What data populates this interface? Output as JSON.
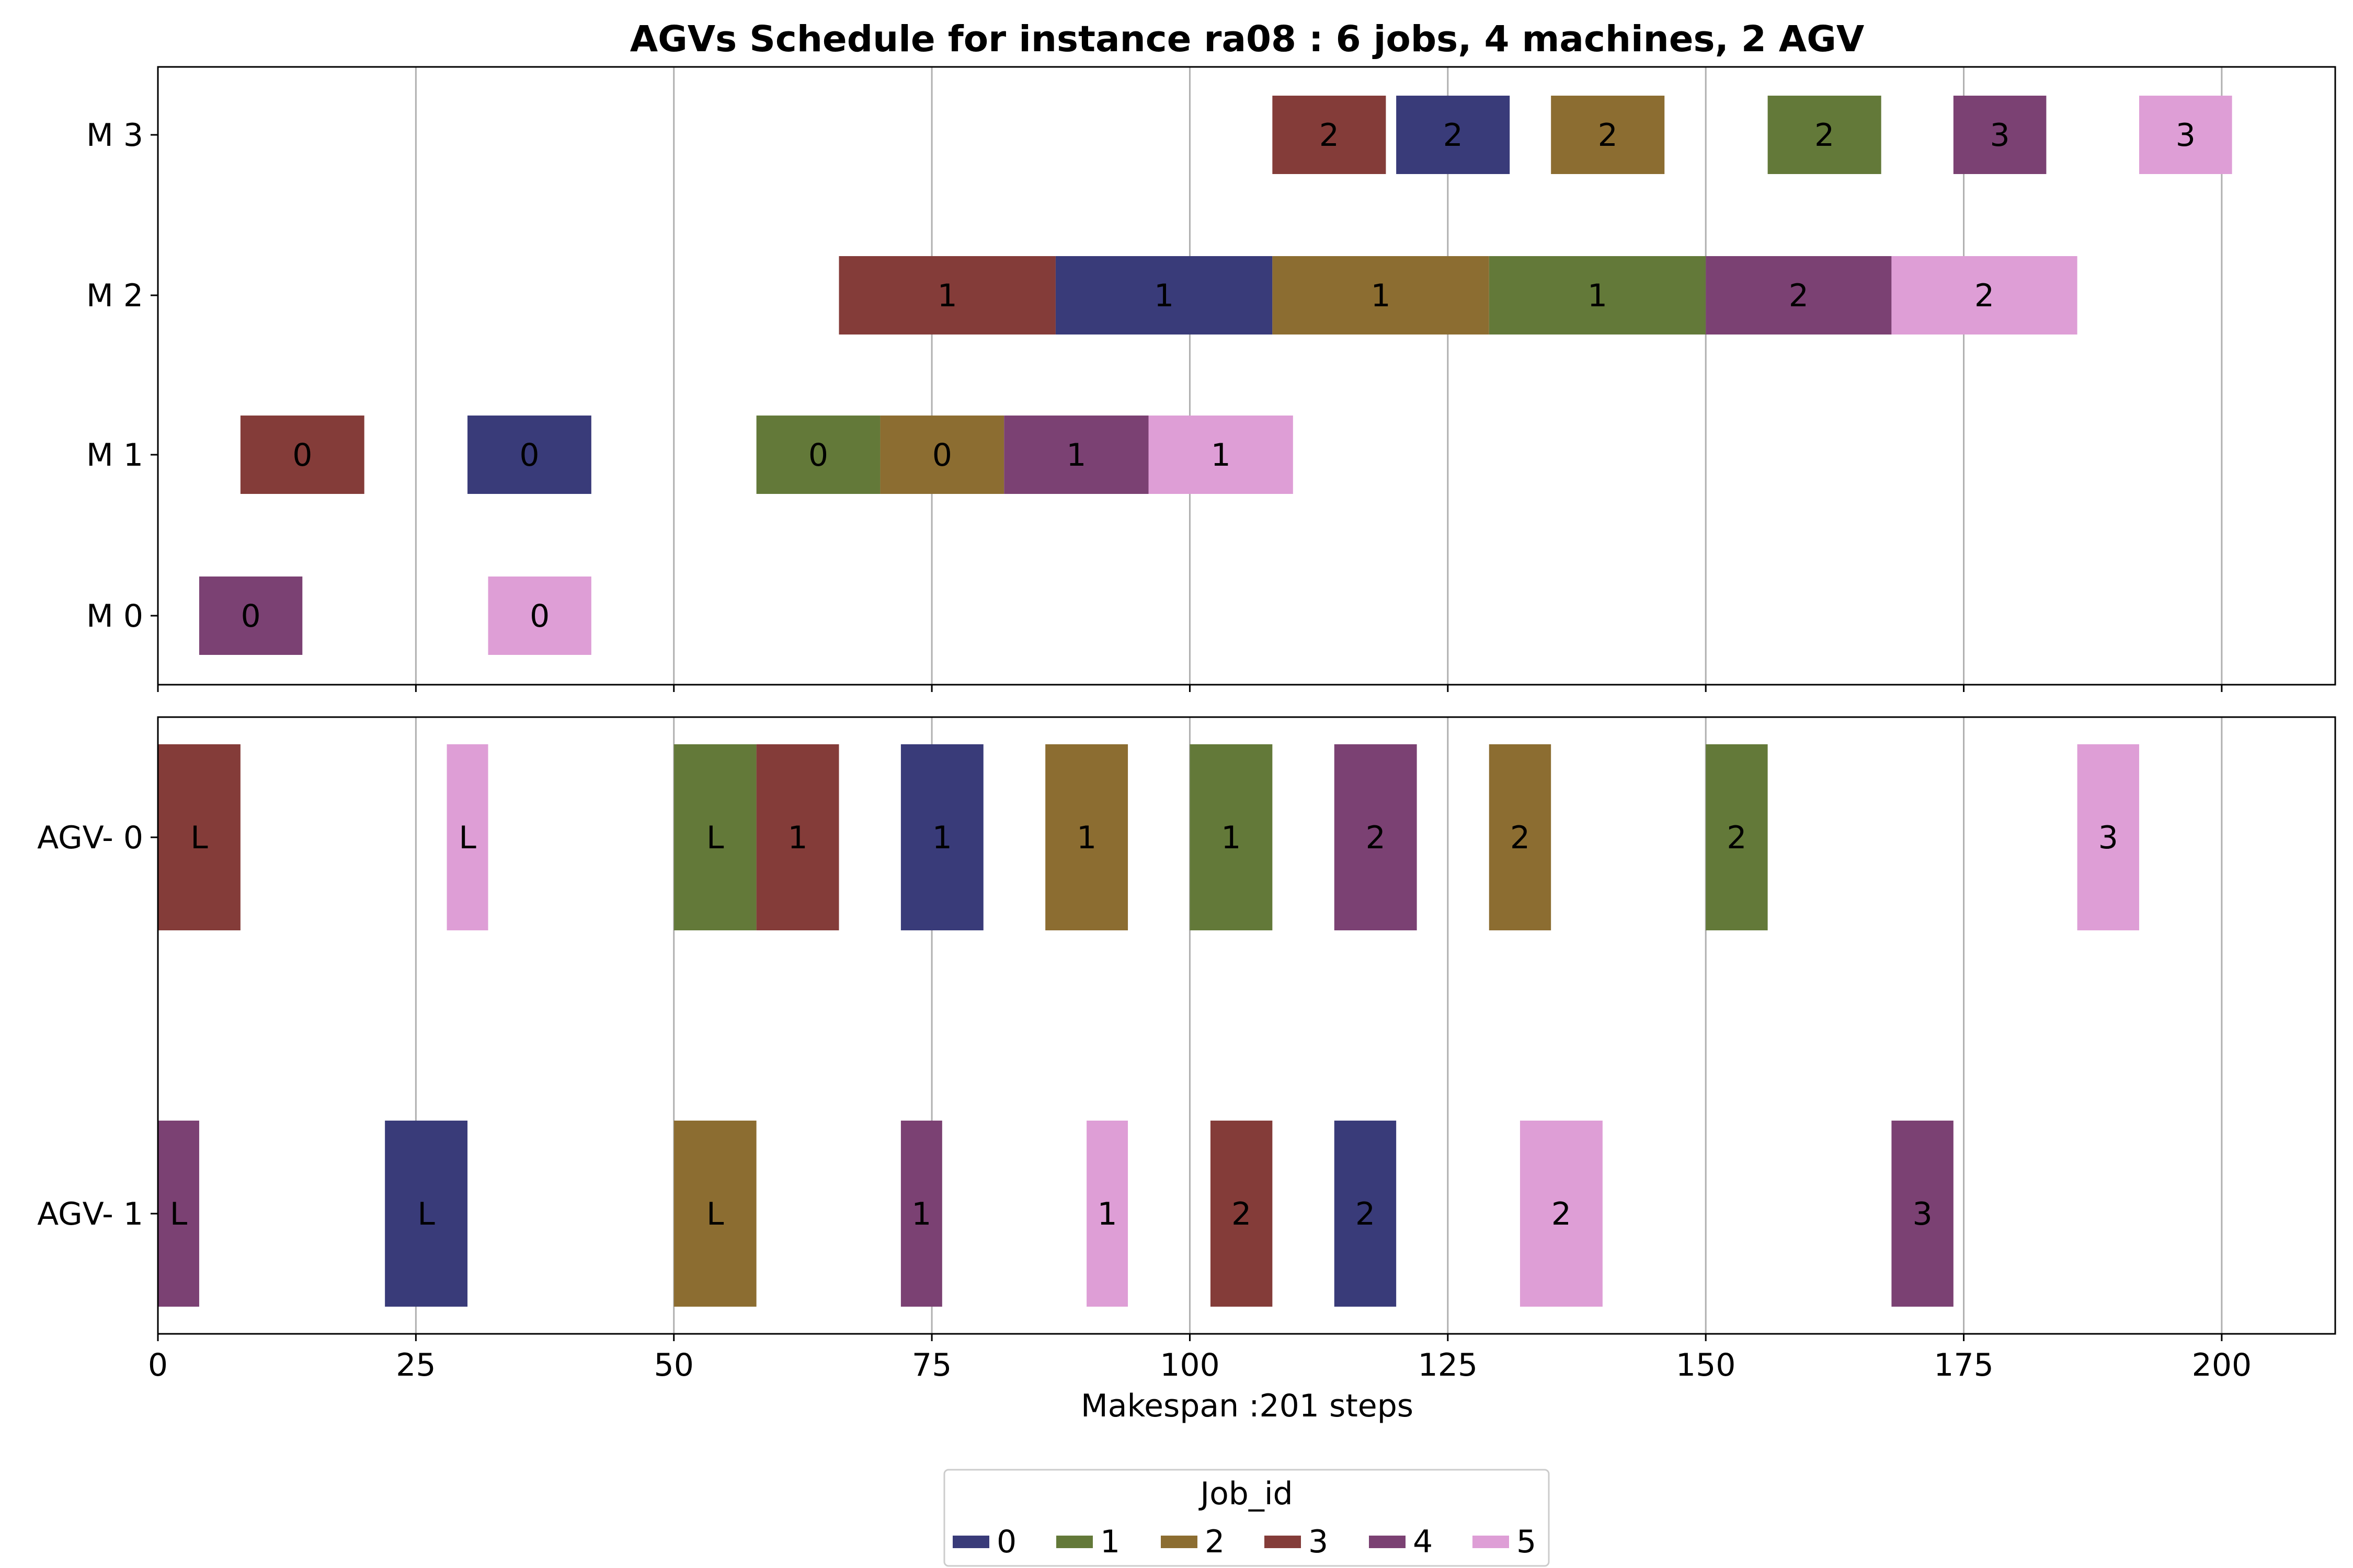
{
  "chart_data": {
    "type": "gantt",
    "title": "AGVs Schedule for instance ra08  : 6 jobs, 4 machines, 2 AGV",
    "xlabel": "Makespan :201 steps",
    "xlim": [
      0,
      211
    ],
    "xticks": [
      "0",
      "25",
      "50",
      "75",
      "100",
      "125",
      "150",
      "175",
      "200"
    ],
    "xtick_values": [
      0,
      25,
      50,
      75,
      100,
      125,
      150,
      175,
      200
    ],
    "grid": "vertical",
    "legend": {
      "title": "Job_id",
      "placement": "bottom-center",
      "entries": [
        {
          "job": 0,
          "label": "0",
          "color": "#393b79"
        },
        {
          "job": 1,
          "label": "1",
          "color": "#637939"
        },
        {
          "job": 2,
          "label": "2",
          "color": "#8c6d31"
        },
        {
          "job": 3,
          "label": "3",
          "color": "#843c39"
        },
        {
          "job": 4,
          "label": "4",
          "color": "#7b4173"
        },
        {
          "job": 5,
          "label": "5",
          "color": "#de9ed6"
        }
      ]
    },
    "machine_panel": {
      "rows": [
        "M 0",
        "M 1",
        "M 2",
        "M 3"
      ],
      "tasks": [
        {
          "row": 0,
          "job": 4,
          "start": 4,
          "end": 14,
          "label": "0"
        },
        {
          "row": 0,
          "job": 5,
          "start": 32,
          "end": 42,
          "label": "0"
        },
        {
          "row": 1,
          "job": 3,
          "start": 8,
          "end": 20,
          "label": "0"
        },
        {
          "row": 1,
          "job": 0,
          "start": 30,
          "end": 42,
          "label": "0"
        },
        {
          "row": 1,
          "job": 1,
          "start": 58,
          "end": 70,
          "label": "0"
        },
        {
          "row": 1,
          "job": 2,
          "start": 70,
          "end": 82,
          "label": "0"
        },
        {
          "row": 1,
          "job": 4,
          "start": 82,
          "end": 96,
          "label": "1"
        },
        {
          "row": 1,
          "job": 5,
          "start": 96,
          "end": 110,
          "label": "1"
        },
        {
          "row": 2,
          "job": 3,
          "start": 66,
          "end": 87,
          "label": "1"
        },
        {
          "row": 2,
          "job": 0,
          "start": 87,
          "end": 108,
          "label": "1"
        },
        {
          "row": 2,
          "job": 2,
          "start": 108,
          "end": 129,
          "label": "1"
        },
        {
          "row": 2,
          "job": 1,
          "start": 129,
          "end": 150,
          "label": "1"
        },
        {
          "row": 2,
          "job": 4,
          "start": 150,
          "end": 168,
          "label": "2"
        },
        {
          "row": 2,
          "job": 5,
          "start": 168,
          "end": 186,
          "label": "2"
        },
        {
          "row": 3,
          "job": 3,
          "start": 108,
          "end": 119,
          "label": "2"
        },
        {
          "row": 3,
          "job": 0,
          "start": 120,
          "end": 131,
          "label": "2"
        },
        {
          "row": 3,
          "job": 2,
          "start": 135,
          "end": 146,
          "label": "2"
        },
        {
          "row": 3,
          "job": 1,
          "start": 156,
          "end": 167,
          "label": "2"
        },
        {
          "row": 3,
          "job": 4,
          "start": 174,
          "end": 183,
          "label": "3"
        },
        {
          "row": 3,
          "job": 5,
          "start": 192,
          "end": 201,
          "label": "3"
        }
      ]
    },
    "agv_panel": {
      "rows": [
        "AGV- 1",
        "AGV- 0"
      ],
      "tasks": [
        {
          "row": 1,
          "job": 3,
          "start": 0,
          "end": 8,
          "label": "L"
        },
        {
          "row": 1,
          "job": 5,
          "start": 28,
          "end": 32,
          "label": "L"
        },
        {
          "row": 1,
          "job": 1,
          "start": 50,
          "end": 58,
          "label": "L"
        },
        {
          "row": 1,
          "job": 3,
          "start": 58,
          "end": 66,
          "label": "1"
        },
        {
          "row": 1,
          "job": 0,
          "start": 72,
          "end": 80,
          "label": "1"
        },
        {
          "row": 1,
          "job": 2,
          "start": 86,
          "end": 94,
          "label": "1"
        },
        {
          "row": 1,
          "job": 1,
          "start": 100,
          "end": 108,
          "label": "1"
        },
        {
          "row": 1,
          "job": 4,
          "start": 114,
          "end": 122,
          "label": "2"
        },
        {
          "row": 1,
          "job": 2,
          "start": 129,
          "end": 135,
          "label": "2"
        },
        {
          "row": 1,
          "job": 1,
          "start": 150,
          "end": 156,
          "label": "2"
        },
        {
          "row": 1,
          "job": 5,
          "start": 186,
          "end": 192,
          "label": "3"
        },
        {
          "row": 0,
          "job": 4,
          "start": 0,
          "end": 4,
          "label": "L"
        },
        {
          "row": 0,
          "job": 0,
          "start": 22,
          "end": 30,
          "label": "L"
        },
        {
          "row": 0,
          "job": 2,
          "start": 50,
          "end": 58,
          "label": "L"
        },
        {
          "row": 0,
          "job": 4,
          "start": 72,
          "end": 76,
          "label": "1"
        },
        {
          "row": 0,
          "job": 5,
          "start": 90,
          "end": 94,
          "label": "1"
        },
        {
          "row": 0,
          "job": 3,
          "start": 102,
          "end": 108,
          "label": "2"
        },
        {
          "row": 0,
          "job": 0,
          "start": 114,
          "end": 120,
          "label": "2"
        },
        {
          "row": 0,
          "job": 5,
          "start": 132,
          "end": 140,
          "label": "2"
        },
        {
          "row": 0,
          "job": 4,
          "start": 168,
          "end": 174,
          "label": "3"
        }
      ]
    }
  }
}
